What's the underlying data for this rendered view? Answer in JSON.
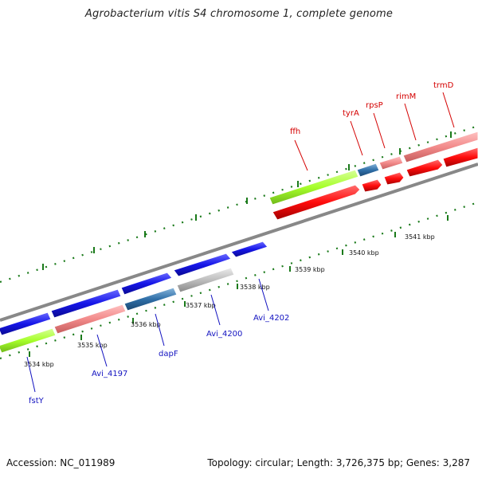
{
  "title": "Agrobacterium vitis S4 chromosome 1, complete genome",
  "footer": {
    "accession": "Accession: NC_011989",
    "summary": "Topology: circular; Length: 3,726,375 bp; Genes: 3,287"
  },
  "colors": {
    "forward_gene": "#1515e8",
    "reverse_gene": "#ff0c0c",
    "rna": "#2f6fa8",
    "rrna": "#a6ff2a",
    "pseudo": "#bdbdbd",
    "highlight": "#f28a8a",
    "tick": "#1a7a1a",
    "backbone": "#808080",
    "label_blue": "#1212c0",
    "label_red": "#d40000"
  },
  "tick_labels": [
    "3534 kbp",
    "3535 kbp",
    "3536 kbp",
    "3537 kbp",
    "3538 kbp",
    "3539 kbp",
    "3540 kbp",
    "3541 kbp"
  ],
  "labels": {
    "top": [
      "ffh",
      "tyrA",
      "rpsP",
      "rimM",
      "trmD"
    ],
    "bottom": [
      "fstY",
      "Avi_4197",
      "dapF",
      "Avi_4200",
      "Avi_4202"
    ]
  }
}
